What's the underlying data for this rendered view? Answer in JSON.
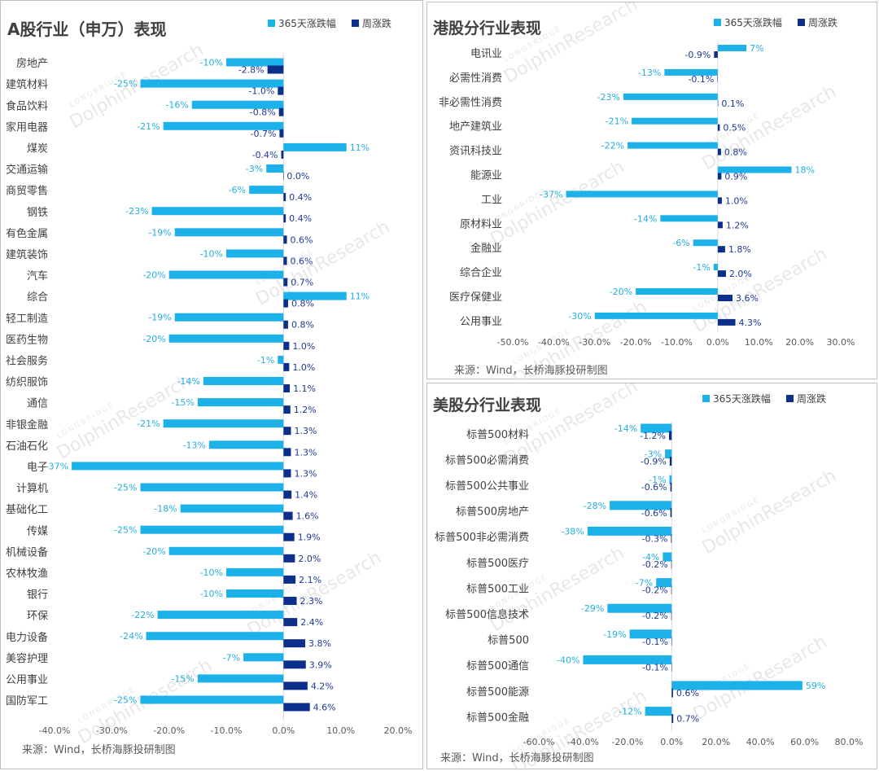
{
  "colors": {
    "series_365": "#1cb1e8",
    "series_week": "#0d2f8c",
    "axis": "#d9d9d9"
  },
  "watermark": {
    "brand": "LONGBRIDGE",
    "name": "DolphinResearch"
  },
  "chart_data": [
    {
      "id": "a_share",
      "type": "bar",
      "orientation": "horizontal",
      "title": "A股行业（申万）表现",
      "source": "来源：Wind，长桥海豚投研制图",
      "legend": {
        "position": "top-right",
        "entries": [
          "365天涨跌幅",
          "周涨跌"
        ]
      },
      "xlim": [
        -40,
        20
      ],
      "xticks": [
        -40,
        -30,
        -20,
        -10,
        0,
        10,
        20
      ],
      "xtick_labels": [
        "-40.0%",
        "-30.0%",
        "-20.0%",
        "-10.0%",
        "0.0%",
        "10.0%",
        "20.0%"
      ],
      "grid": false,
      "categories": [
        "房地产",
        "建筑材料",
        "食品饮料",
        "家用电器",
        "煤炭",
        "交通运输",
        "商贸零售",
        "钢铁",
        "有色金属",
        "建筑装饰",
        "汽车",
        "综合",
        "轻工制造",
        "医药生物",
        "社会服务",
        "纺织服饰",
        "通信",
        "非银金融",
        "石油石化",
        "电子",
        "计算机",
        "基础化工",
        "传媒",
        "机械设备",
        "农林牧渔",
        "银行",
        "环保",
        "电力设备",
        "美容护理",
        "公用事业",
        "国防军工"
      ],
      "series": [
        {
          "name": "365天涨跌幅",
          "values": [
            -10,
            -25,
            -16,
            -21,
            11,
            -3,
            -6,
            -23,
            -19,
            -10,
            -20,
            11,
            -19,
            -20,
            -1,
            -14,
            -15,
            -21,
            -13,
            -37,
            -25,
            -18,
            -25,
            -20,
            -10,
            -10,
            -22,
            -24,
            -7,
            -15,
            -25
          ],
          "labels": [
            "-10%",
            "-25%",
            "-16%",
            "-21%",
            "11%",
            "-3%",
            "-6%",
            "-23%",
            "-19%",
            "-10%",
            "-20%",
            "11%",
            "-19%",
            "-20%",
            "-1%",
            "-14%",
            "-15%",
            "-21%",
            "-13%",
            "-37%",
            "-25%",
            "-18%",
            "-25%",
            "-20%",
            "-10%",
            "-10%",
            "-22%",
            "-24%",
            "-7%",
            "-15%",
            "-25%"
          ]
        },
        {
          "name": "周涨跌",
          "values": [
            -2.8,
            -1.0,
            -0.8,
            -0.7,
            -0.4,
            0.0,
            0.4,
            0.4,
            0.6,
            0.6,
            0.7,
            0.8,
            0.8,
            1.0,
            1.0,
            1.1,
            1.2,
            1.3,
            1.3,
            1.3,
            1.4,
            1.6,
            1.9,
            2.0,
            2.1,
            2.3,
            2.4,
            3.8,
            3.9,
            4.2,
            4.6
          ],
          "labels": [
            "-2.8%",
            "-1.0%",
            "-0.8%",
            "-0.7%",
            "-0.4%",
            "0.0%",
            "0.4%",
            "0.4%",
            "0.6%",
            "0.6%",
            "0.7%",
            "0.8%",
            "0.8%",
            "1.0%",
            "1.0%",
            "1.1%",
            "1.2%",
            "1.3%",
            "1.3%",
            "1.3%",
            "1.4%",
            "1.6%",
            "1.9%",
            "2.0%",
            "2.1%",
            "2.3%",
            "2.4%",
            "3.8%",
            "3.9%",
            "4.2%",
            "4.6%"
          ]
        }
      ]
    },
    {
      "id": "hk_share",
      "type": "bar",
      "orientation": "horizontal",
      "title": "港股分行业表现",
      "source": "来源：Wind，长桥海豚投研制图",
      "legend": {
        "position": "top-right",
        "entries": [
          "365天涨跌幅",
          "周涨跌"
        ]
      },
      "xlim": [
        -50,
        30
      ],
      "xticks": [
        -50,
        -40,
        -30,
        -20,
        -10,
        0,
        10,
        20,
        30
      ],
      "xtick_labels": [
        "-50.0%",
        "-40.0%",
        "-30.0%",
        "-20.0%",
        "-10.0%",
        "0.0%",
        "10.0%",
        "20.0%",
        "30.0%"
      ],
      "grid": false,
      "categories": [
        "电讯业",
        "必需性消费",
        "非必需性消费",
        "地产建筑业",
        "资讯科技业",
        "能源业",
        "工业",
        "原材料业",
        "金融业",
        "综合企业",
        "医疗保健业",
        "公用事业"
      ],
      "series": [
        {
          "name": "365天涨跌幅",
          "values": [
            7,
            -13,
            -23,
            -21,
            -22,
            18,
            -37,
            -14,
            -6,
            -1,
            -20,
            -30
          ],
          "labels": [
            "7%",
            "-13%",
            "-23%",
            "-21%",
            "-22%",
            "18%",
            "-37%",
            "-14%",
            "-6%",
            "-1%",
            "-20%",
            "-30%"
          ]
        },
        {
          "name": "周涨跌",
          "values": [
            -0.9,
            -0.1,
            0.1,
            0.5,
            0.8,
            0.9,
            1.0,
            1.2,
            1.8,
            2.0,
            3.6,
            4.3
          ],
          "labels": [
            "-0.9%",
            "-0.1%",
            "0.1%",
            "0.5%",
            "0.8%",
            "0.9%",
            "1.0%",
            "1.2%",
            "1.8%",
            "2.0%",
            "3.6%",
            "4.3%"
          ]
        }
      ]
    },
    {
      "id": "us_share",
      "type": "bar",
      "orientation": "horizontal",
      "title": "美股分行业表现",
      "source": "来源：Wind，长桥海豚投研制图",
      "legend": {
        "position": "top-right",
        "entries": [
          "365天涨跌幅",
          "周涨跌"
        ]
      },
      "xlim": [
        -60,
        80
      ],
      "xticks": [
        -60,
        -40,
        -20,
        0,
        20,
        40,
        60,
        80
      ],
      "xtick_labels": [
        "-60.0%",
        "-40.0%",
        "-20.0%",
        "0.0%",
        "20.0%",
        "40.0%",
        "60.0%",
        "80.0%"
      ],
      "grid": false,
      "categories": [
        "标普500材料",
        "标普500必需消费",
        "标普500公共事业",
        "标普500房地产",
        "标普500非必需消费",
        "标普500医疗",
        "标普500工业",
        "标普500信息技术",
        "标普500",
        "标普500通信",
        "标普500能源",
        "标普500金融"
      ],
      "series": [
        {
          "name": "365天涨跌幅",
          "values": [
            -14,
            -3,
            -1,
            -28,
            -38,
            -4,
            -7,
            -29,
            -19,
            -40,
            59,
            -12
          ],
          "labels": [
            "-14%",
            "-3%",
            "-1%",
            "-28%",
            "-38%",
            "-4%",
            "-7%",
            "-29%",
            "-19%",
            "-40%",
            "59%",
            "-12%"
          ]
        },
        {
          "name": "周涨跌",
          "values": [
            -1.2,
            -0.9,
            -0.6,
            -0.6,
            -0.3,
            -0.2,
            -0.2,
            -0.2,
            -0.1,
            -0.1,
            0.6,
            0.7
          ],
          "labels": [
            "-1.2%",
            "-0.9%",
            "-0.6%",
            "-0.6%",
            "-0.3%",
            "-0.2%",
            "-0.2%",
            "-0.2%",
            "-0.1%",
            "-0.1%",
            "0.6%",
            "0.7%"
          ]
        }
      ]
    }
  ]
}
